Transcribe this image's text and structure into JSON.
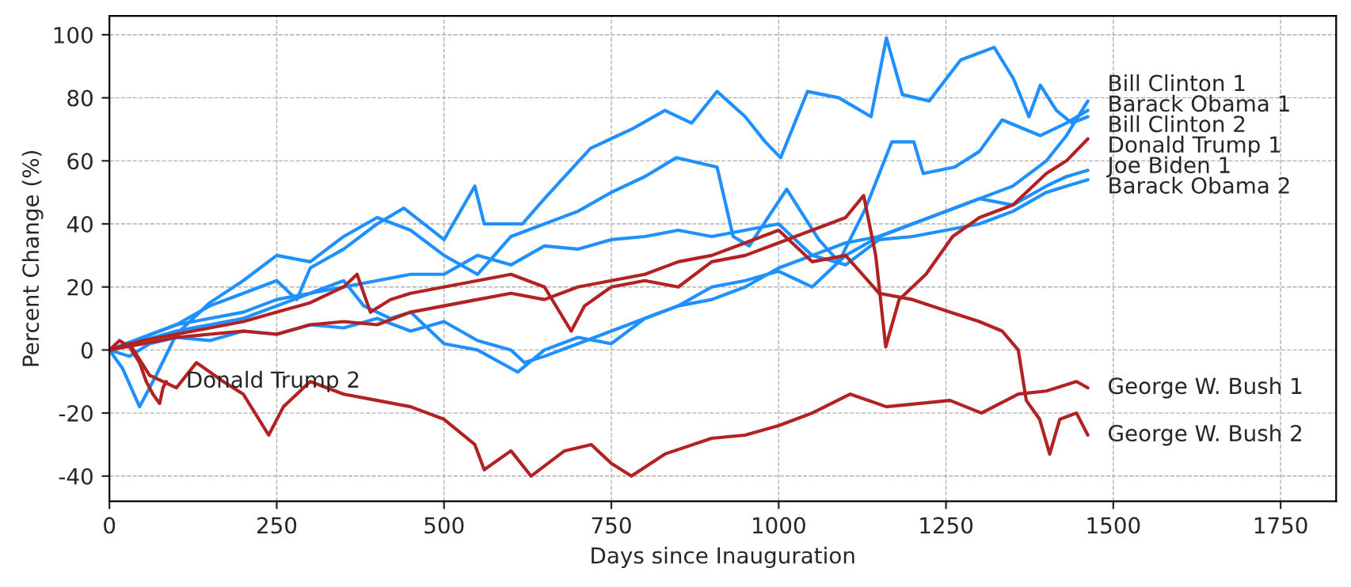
{
  "chart_data": {
    "type": "line",
    "xlabel": "Days since Inauguration",
    "ylabel": "Percent Change (%)",
    "xlim": [
      0,
      1833
    ],
    "ylim": [
      -48,
      106
    ],
    "xticks": [
      0,
      250,
      500,
      750,
      1000,
      1250,
      1500,
      1750
    ],
    "yticks": [
      -40,
      -20,
      0,
      20,
      40,
      60,
      80,
      100
    ],
    "grid": true,
    "line_style": "solid",
    "series": [
      {
        "name": "Bill Clinton 1",
        "color": "#1e90ff",
        "x": [
          0,
          30,
          60,
          100,
          150,
          200,
          250,
          300,
          350,
          400,
          450,
          500,
          550,
          600,
          620,
          650,
          700,
          750,
          800,
          850,
          900,
          950,
          1000,
          1050,
          1100,
          1150,
          1200,
          1250,
          1300,
          1350,
          1400,
          1430,
          1462
        ],
        "values": [
          0,
          -2,
          2,
          4,
          3,
          6,
          5,
          8,
          7,
          10,
          6,
          9,
          3,
          0,
          -4,
          -2,
          2,
          6,
          10,
          14,
          16,
          20,
          26,
          30,
          34,
          36,
          40,
          44,
          48,
          52,
          60,
          68,
          79
        ]
      },
      {
        "name": "Bill Clinton 2",
        "color": "#1e90ff",
        "x": [
          0,
          50,
          100,
          150,
          200,
          250,
          280,
          300,
          350,
          400,
          440,
          500,
          546,
          560,
          617,
          650,
          719,
          780,
          830,
          870,
          908,
          950,
          980,
          1003,
          1043,
          1090,
          1138,
          1161,
          1185,
          1225,
          1272,
          1322,
          1351,
          1374,
          1391,
          1415,
          1438,
          1462
        ],
        "values": [
          0,
          4,
          8,
          14,
          18,
          22,
          16,
          26,
          32,
          40,
          45,
          35,
          52,
          40,
          40,
          48,
          64,
          70,
          76,
          72,
          82,
          74,
          66,
          61,
          82,
          80,
          74,
          99,
          81,
          79,
          92,
          96,
          86,
          74,
          84,
          76,
          72,
          74
        ]
      },
      {
        "name": "Barack Obama 1",
        "color": "#1e90ff",
        "x": [
          0,
          20,
          45,
          70,
          100,
          150,
          200,
          250,
          300,
          350,
          400,
          450,
          500,
          550,
          600,
          650,
          700,
          750,
          800,
          847,
          908,
          932,
          956,
          1012,
          1060,
          1090,
          1130,
          1169,
          1202,
          1216,
          1263,
          1300,
          1334,
          1391,
          1430,
          1462
        ],
        "values": [
          0,
          -6,
          -18,
          -8,
          5,
          15,
          22,
          30,
          28,
          36,
          42,
          38,
          30,
          24,
          36,
          40,
          44,
          50,
          55,
          61,
          58,
          36,
          33,
          51,
          35,
          28,
          45,
          66,
          66,
          56,
          58,
          63,
          73,
          68,
          72,
          76
        ]
      },
      {
        "name": "Barack Obama 2",
        "color": "#1e90ff",
        "x": [
          0,
          50,
          100,
          150,
          200,
          250,
          300,
          350,
          400,
          450,
          500,
          550,
          600,
          650,
          700,
          750,
          800,
          850,
          900,
          950,
          1000,
          1050,
          1100,
          1150,
          1200,
          1250,
          1300,
          1350,
          1400,
          1430,
          1462
        ],
        "values": [
          0,
          3,
          6,
          8,
          10,
          14,
          18,
          20,
          22,
          24,
          24,
          30,
          27,
          33,
          32,
          35,
          36,
          38,
          36,
          38,
          40,
          30,
          27,
          35,
          36,
          38,
          40,
          44,
          50,
          52,
          54
        ]
      },
      {
        "name": "Joe Biden 1",
        "color": "#1e90ff",
        "x": [
          0,
          50,
          100,
          150,
          200,
          250,
          300,
          350,
          380,
          420,
          450,
          500,
          550,
          610,
          650,
          700,
          750,
          800,
          850,
          900,
          950,
          1000,
          1050,
          1100,
          1150,
          1200,
          1250,
          1300,
          1350,
          1400,
          1430,
          1462
        ],
        "values": [
          0,
          4,
          8,
          10,
          12,
          16,
          18,
          22,
          14,
          10,
          12,
          2,
          0,
          -7,
          0,
          4,
          2,
          10,
          14,
          20,
          22,
          25,
          20,
          30,
          36,
          40,
          44,
          48,
          46,
          52,
          55,
          57
        ]
      },
      {
        "name": "Donald Trump 1",
        "color": "#b22222",
        "x": [
          0,
          50,
          100,
          150,
          200,
          250,
          300,
          350,
          370,
          390,
          420,
          450,
          500,
          550,
          600,
          650,
          690,
          710,
          750,
          800,
          850,
          900,
          950,
          1000,
          1050,
          1100,
          1127,
          1145,
          1160,
          1180,
          1220,
          1260,
          1300,
          1350,
          1400,
          1430,
          1462
        ],
        "values": [
          0,
          3,
          5,
          7,
          9,
          12,
          15,
          20,
          24,
          12,
          16,
          18,
          20,
          22,
          24,
          20,
          6,
          14,
          20,
          22,
          20,
          28,
          30,
          34,
          38,
          42,
          49,
          30,
          1,
          16,
          24,
          36,
          42,
          46,
          56,
          60,
          67
        ]
      },
      {
        "name": "George W. Bush 1",
        "color": "#b22222",
        "x": [
          0,
          30,
          60,
          100,
          130,
          170,
          200,
          238,
          260,
          300,
          350,
          400,
          450,
          500,
          546,
          560,
          600,
          630,
          680,
          720,
          750,
          780,
          830,
          900,
          950,
          1000,
          1050,
          1107,
          1161,
          1256,
          1303,
          1358,
          1400,
          1445,
          1462
        ],
        "values": [
          0,
          2,
          -8,
          -12,
          -4,
          -10,
          -14,
          -27,
          -18,
          -10,
          -14,
          -16,
          -18,
          -22,
          -30,
          -38,
          -32,
          -40,
          -32,
          -30,
          -36,
          -40,
          -33,
          -28,
          -27,
          -24,
          -20,
          -14,
          -18,
          -16,
          -20,
          -14,
          -13,
          -10,
          -12
        ]
      },
      {
        "name": "George W. Bush 2",
        "color": "#b22222",
        "x": [
          0,
          50,
          100,
          150,
          200,
          250,
          300,
          350,
          400,
          450,
          500,
          550,
          600,
          650,
          700,
          750,
          800,
          850,
          900,
          950,
          1000,
          1050,
          1100,
          1150,
          1200,
          1256,
          1300,
          1334,
          1358,
          1370,
          1390,
          1405,
          1420,
          1445,
          1462
        ],
        "values": [
          0,
          2,
          4,
          5,
          6,
          5,
          8,
          9,
          8,
          12,
          14,
          16,
          18,
          16,
          20,
          22,
          24,
          28,
          30,
          34,
          38,
          28,
          30,
          18,
          16,
          12,
          9,
          6,
          0,
          -16,
          -22,
          -33,
          -22,
          -20,
          -27
        ]
      },
      {
        "name": "Donald Trump 2",
        "color": "#b22222",
        "x": [
          0,
          15,
          30,
          45,
          55,
          65,
          75,
          80,
          85
        ],
        "values": [
          0,
          3,
          1,
          -4,
          -10,
          -14,
          -17,
          -12,
          -10
        ]
      }
    ]
  }
}
